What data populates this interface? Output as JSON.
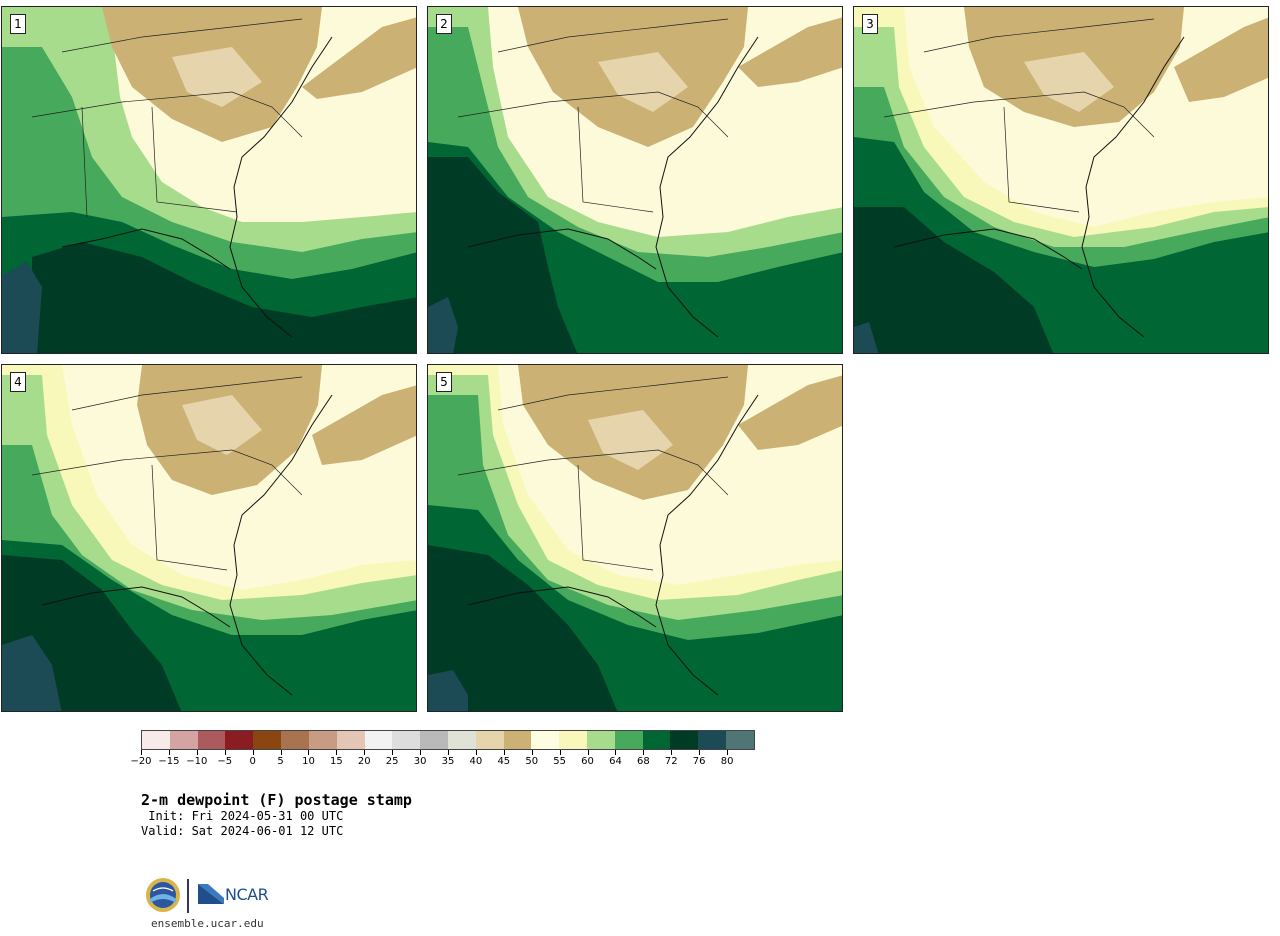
{
  "panels": [
    {
      "label": "1"
    },
    {
      "label": "2"
    },
    {
      "label": "3"
    },
    {
      "label": "4"
    },
    {
      "label": "5"
    }
  ],
  "colorbar": {
    "colors": [
      "#f6ebe9",
      "#d5a3a4",
      "#ad5a5e",
      "#8b1c22",
      "#8a4511",
      "#a9734f",
      "#c79c83",
      "#e4c6b6",
      "#f2f2f2",
      "#dddddd",
      "#b9b9b9",
      "#e1e2d6",
      "#e6d4ac",
      "#cbb173",
      "#fdfde2",
      "#f7f8b9",
      "#a8dc8d",
      "#46a95c",
      "#006634",
      "#003b26",
      "#1c4a55",
      "#4f7675"
    ],
    "tick_labels": [
      "−20",
      "−15",
      "−10",
      "−5",
      "0",
      "5",
      "10",
      "15",
      "20",
      "25",
      "30",
      "35",
      "40",
      "45",
      "50",
      "55",
      "60",
      "64",
      "68",
      "72",
      "76",
      "80"
    ]
  },
  "title": "2-m dewpoint (F) postage stamp",
  "init": " Init: Fri 2024-05-31 00 UTC",
  "valid": "Valid: Sat 2024-06-01 12 UTC",
  "logos": {
    "ncar_text": "NCAR"
  },
  "site_url": "ensemble.ucar.edu"
}
